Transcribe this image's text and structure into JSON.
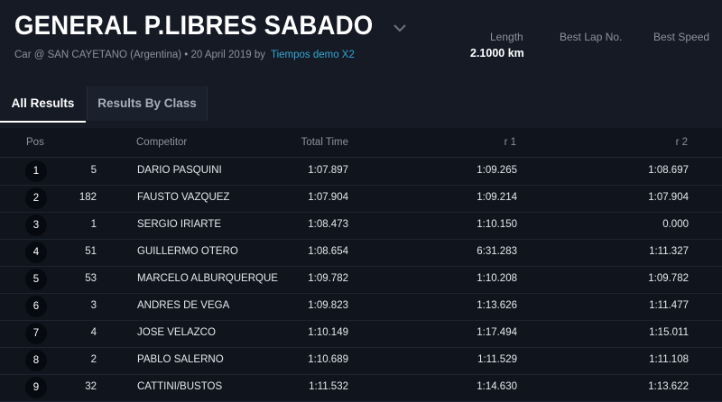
{
  "event": {
    "title": "GENERAL P.LIBRES SABADO",
    "subtitle": "Car @ SAN CAYETANO (Argentina) • 20 April 2019 by",
    "organizer_link": "Tiempos demo X2"
  },
  "stats": {
    "length_label": "Length",
    "length_value": "2.1000 km",
    "best_lap_label": "Best Lap No.",
    "best_speed_label": "Best Speed"
  },
  "tabs": [
    {
      "label": "All Results"
    },
    {
      "label": "Results By Class"
    }
  ],
  "table": {
    "headers": {
      "pos": "Pos",
      "competitor": "Competitor",
      "total": "Total Time",
      "r1": "r 1",
      "r2": "r 2"
    },
    "rows": [
      {
        "pos": "1",
        "num": "5",
        "name": "DARIO PASQUINI",
        "total": "1:07.897",
        "r1": "1:09.265",
        "r2": "1:08.697"
      },
      {
        "pos": "2",
        "num": "182",
        "name": "FAUSTO VAZQUEZ",
        "total": "1:07.904",
        "r1": "1:09.214",
        "r2": "1:07.904"
      },
      {
        "pos": "3",
        "num": "1",
        "name": "SERGIO IRIARTE",
        "total": "1:08.473",
        "r1": "1:10.150",
        "r2": "0.000"
      },
      {
        "pos": "4",
        "num": "51",
        "name": "GUILLERMO OTERO",
        "total": "1:08.654",
        "r1": "6:31.283",
        "r2": "1:11.327"
      },
      {
        "pos": "5",
        "num": "53",
        "name": "MARCELO ALBURQUERQUE",
        "total": "1:09.782",
        "r1": "1:10.208",
        "r2": "1:09.782"
      },
      {
        "pos": "6",
        "num": "3",
        "name": "ANDRES DE VEGA",
        "total": "1:09.823",
        "r1": "1:13.626",
        "r2": "1:11.477"
      },
      {
        "pos": "7",
        "num": "4",
        "name": "JOSE VELAZCO",
        "total": "1:10.149",
        "r1": "1:17.494",
        "r2": "1:15.011"
      },
      {
        "pos": "8",
        "num": "2",
        "name": "PABLO SALERNO",
        "total": "1:10.689",
        "r1": "1:11.529",
        "r2": "1:11.108"
      },
      {
        "pos": "9",
        "num": "32",
        "name": "CATTINI/BUSTOS",
        "total": "1:11.532",
        "r1": "1:14.630",
        "r2": "1:13.622"
      }
    ]
  },
  "colors": {
    "background": "#151a24",
    "table_background": "#10151d",
    "link": "#32a8d6",
    "badge": "#060a10"
  }
}
